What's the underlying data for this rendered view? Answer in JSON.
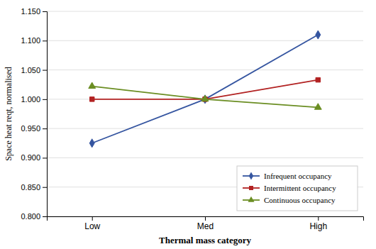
{
  "chart_data": {
    "type": "line",
    "categories": [
      "Low",
      "Med",
      "High"
    ],
    "series": [
      {
        "name": "Infrequent occupancy",
        "color": "#3555A0",
        "marker": "diamond",
        "values": [
          0.925,
          1.0,
          1.11
        ]
      },
      {
        "name": "Intermittent occupancy",
        "color": "#B22222",
        "marker": "square",
        "values": [
          1.0,
          1.0,
          1.033
        ]
      },
      {
        "name": "Continuous occupancy",
        "color": "#6B8E23",
        "marker": "triangle",
        "values": [
          1.022,
          1.0,
          0.986
        ]
      }
    ],
    "x_label": "Thermal mass category",
    "y_label": "Space heat reqt, normalised",
    "ylim": [
      0.8,
      1.15
    ],
    "yticks": [
      {
        "value": 0.8,
        "label": "0.800"
      },
      {
        "value": 0.85,
        "label": "0.850"
      },
      {
        "value": 0.9,
        "label": "0.900"
      },
      {
        "value": 0.95,
        "label": "0.950"
      },
      {
        "value": 1.0,
        "label": "1.000"
      },
      {
        "value": 1.05,
        "label": "1.050"
      },
      {
        "value": 1.1,
        "label": "1.100"
      },
      {
        "value": 1.15,
        "label": "1.150"
      }
    ],
    "grid": true,
    "legend": "lower right"
  }
}
